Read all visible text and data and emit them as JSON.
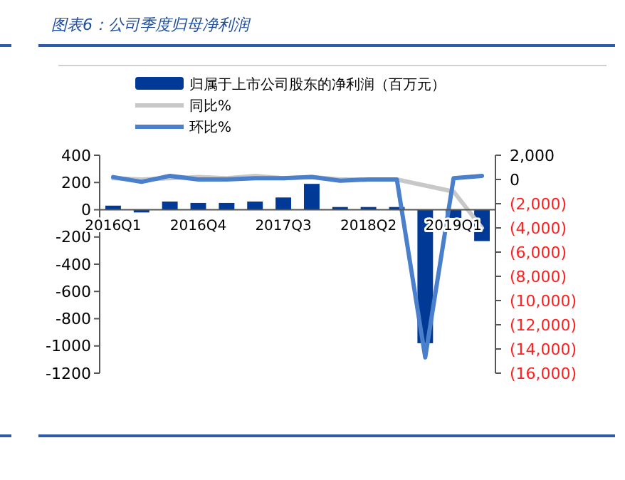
{
  "chart_data": {
    "type": "bar",
    "title": "图表6：公司季度归母净利润",
    "categories": [
      "2016Q1",
      null,
      null,
      "2016Q4",
      null,
      null,
      "2017Q3",
      null,
      null,
      "2018Q2",
      null,
      null,
      "2019Q1",
      null
    ],
    "series": [
      {
        "name": "归属于上市公司股东的净利润（百万元）",
        "color": "#003a96",
        "values": [
          30,
          -20,
          60,
          50,
          50,
          60,
          90,
          190,
          20,
          20,
          20,
          -980,
          -60,
          -230
        ]
      },
      {
        "name": "同比%",
        "type": "line",
        "axis": "y2",
        "color": "#c8c8c8",
        "values": [
          100,
          0,
          100,
          200,
          100,
          300,
          100,
          200,
          0,
          0,
          0,
          -500,
          -1000,
          -4000
        ]
      },
      {
        "name": "环比%",
        "type": "line",
        "axis": "y2",
        "color": "#4a7fcb",
        "values": [
          200,
          -200,
          300,
          0,
          0,
          100,
          100,
          200,
          -100,
          0,
          0,
          -14700,
          100,
          300
        ]
      }
    ],
    "ylim": [
      -1200,
      400
    ],
    "yticks": [
      -1200,
      -1000,
      -800,
      -600,
      -400,
      -200,
      0,
      200,
      400
    ],
    "y2lim": [
      -16000,
      2000
    ],
    "y2ticks": [
      {
        "value": -16000,
        "label": "(16,000)"
      },
      {
        "value": -14000,
        "label": "(14,000)"
      },
      {
        "value": -12000,
        "label": "(12,000)"
      },
      {
        "value": -10000,
        "label": "(10,000)"
      },
      {
        "value": -8000,
        "label": "(8,000)"
      },
      {
        "value": -6000,
        "label": "(6,000)"
      },
      {
        "value": -4000,
        "label": "(4,000)"
      },
      {
        "value": -2000,
        "label": "(2,000)"
      },
      {
        "value": 0,
        "label": "0"
      },
      {
        "value": 2000,
        "label": "2,000"
      }
    ],
    "legend": "top",
    "grid": false
  }
}
